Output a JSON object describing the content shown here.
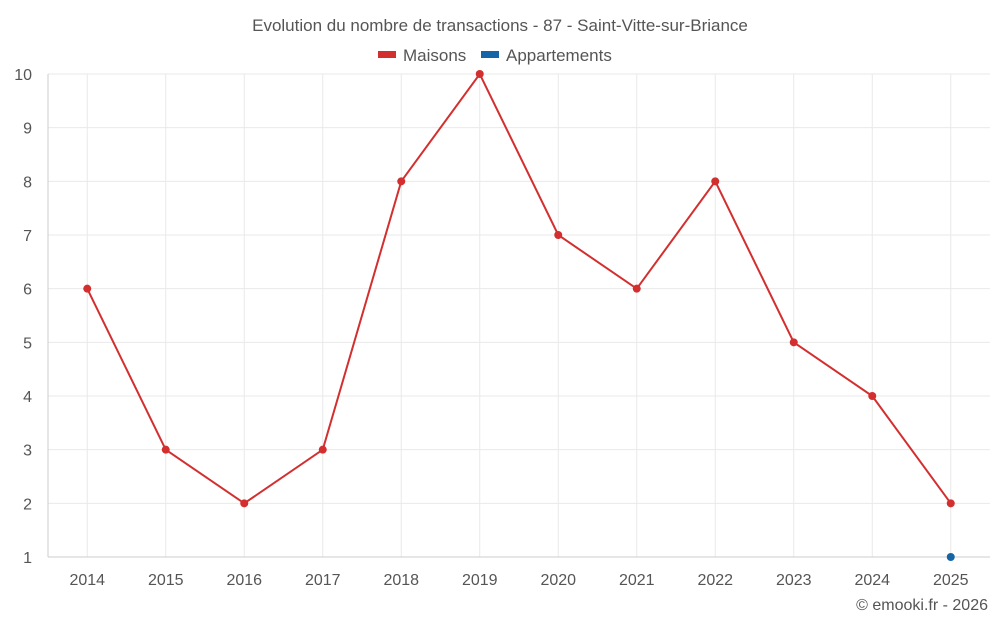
{
  "chart_data": {
    "type": "line",
    "title": "Evolution du nombre de transactions - 87 - Saint-Vitte-sur-Briance",
    "categories": [
      "2014",
      "2015",
      "2016",
      "2017",
      "2018",
      "2019",
      "2020",
      "2021",
      "2022",
      "2023",
      "2024",
      "2025"
    ],
    "ylim": [
      1,
      10
    ],
    "yticks": [
      "1",
      "2",
      "3",
      "4",
      "5",
      "6",
      "7",
      "8",
      "9",
      "10"
    ],
    "grid": true,
    "legend_position": "top-center",
    "xlabel": "",
    "ylabel": "",
    "series": [
      {
        "name": "Maisons",
        "color": "#d32f2f",
        "values": [
          6,
          3,
          2,
          3,
          8,
          10,
          7,
          6,
          8,
          5,
          4,
          2
        ]
      },
      {
        "name": "Appartements",
        "color": "#1565a6",
        "values": [
          null,
          null,
          null,
          null,
          null,
          null,
          null,
          null,
          null,
          null,
          null,
          1
        ]
      }
    ]
  },
  "credit": "© emooki.fr - 2026"
}
